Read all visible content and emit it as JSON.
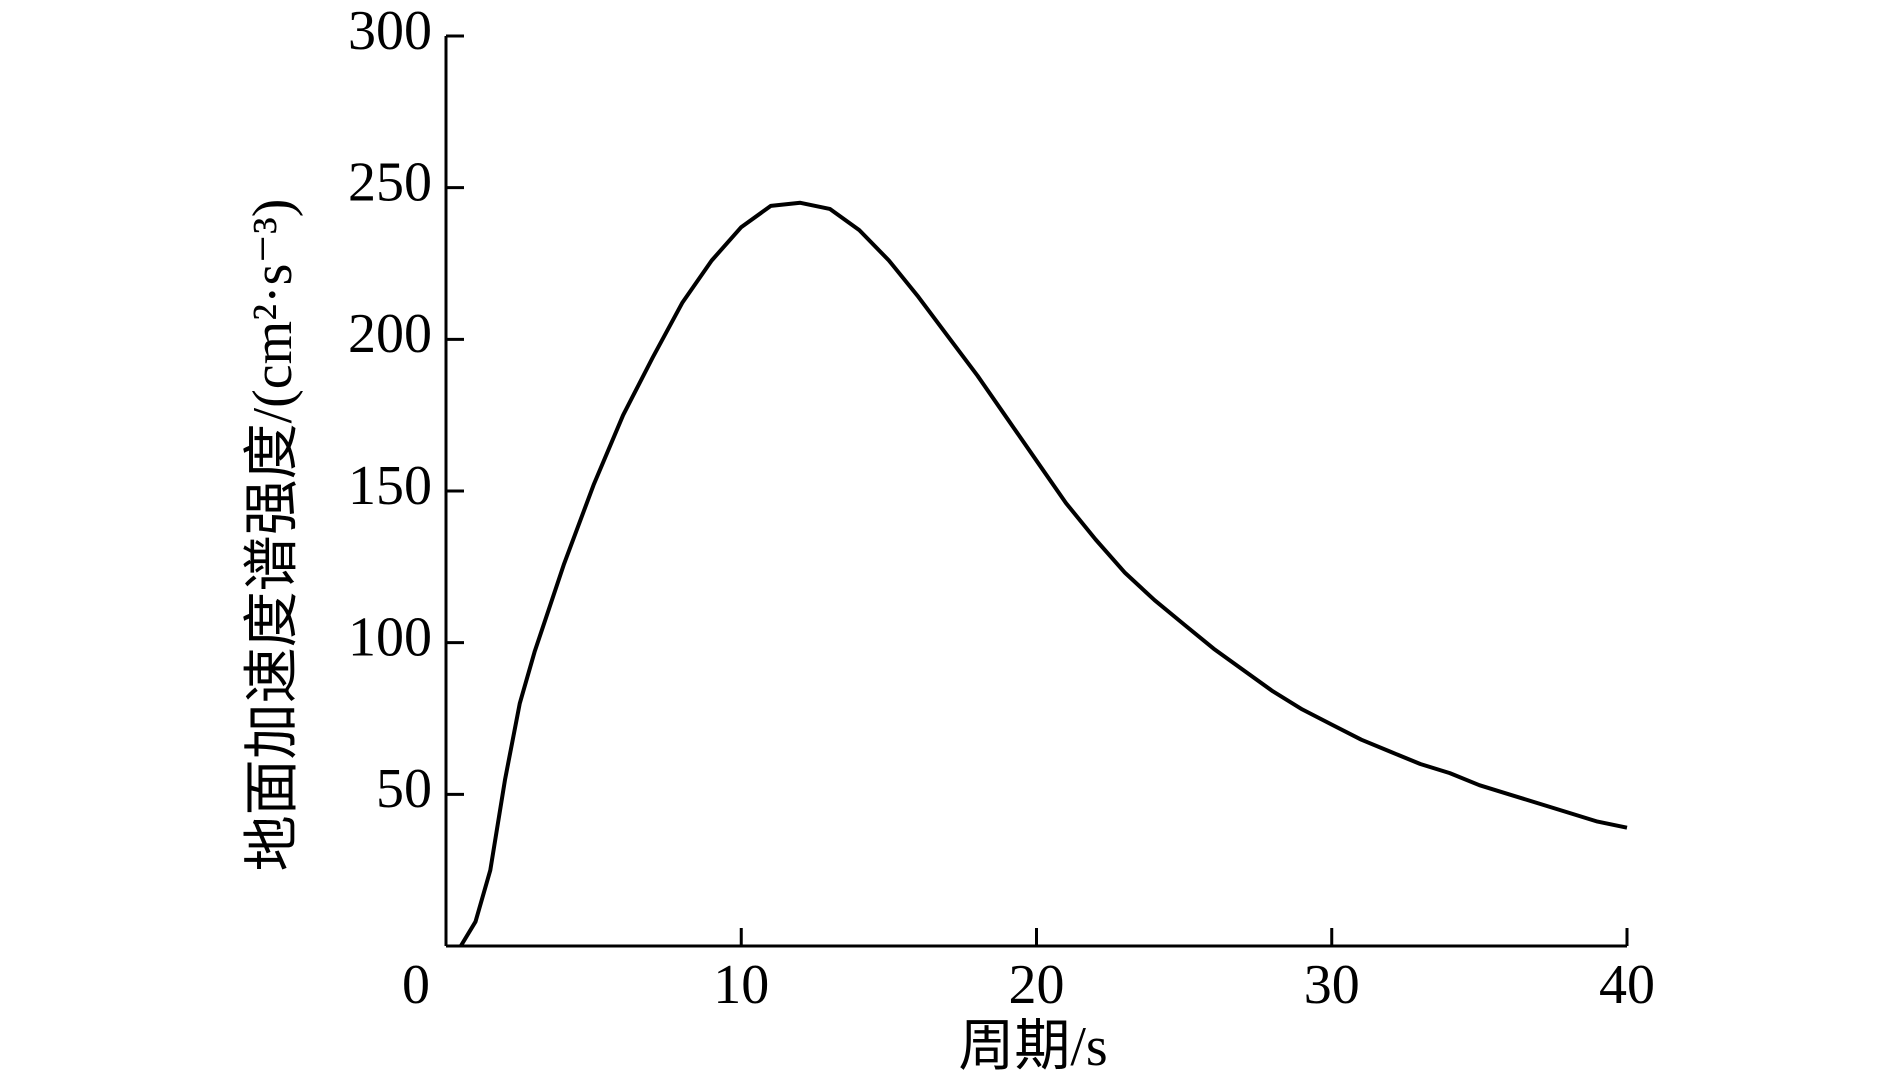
{
  "chart_data": {
    "type": "line",
    "x_label": "周期/s",
    "y_label": "地面加速度谱强度/(cm²·s⁻³)",
    "x": [
      0.5,
      1,
      1.5,
      2,
      2.5,
      3,
      4,
      5,
      6,
      7,
      8,
      9,
      10,
      11,
      12,
      13,
      14,
      15,
      16,
      17,
      18,
      19,
      20,
      21,
      22,
      23,
      24,
      25,
      26,
      27,
      28,
      29,
      30,
      31,
      32,
      33,
      34,
      35,
      36,
      37,
      38,
      39,
      40
    ],
    "series": [
      {
        "color": "#000000",
        "values": [
          0,
          8,
          25,
          55,
          80,
          97,
          126,
          152,
          175,
          194,
          212,
          226,
          237,
          244,
          245,
          243,
          236,
          226,
          214,
          201,
          188,
          174,
          160,
          146,
          134,
          123,
          114,
          106,
          98,
          91,
          84,
          78,
          73,
          68,
          64,
          60,
          57,
          53,
          50,
          47,
          44,
          41,
          39
        ]
      }
    ],
    "xlim": [
      0,
      40
    ],
    "ylim": [
      0,
      300
    ],
    "xticks": [
      0,
      10,
      20,
      30,
      40
    ],
    "yticks": [
      50,
      100,
      150,
      200,
      250,
      300
    ],
    "grid": false
  }
}
